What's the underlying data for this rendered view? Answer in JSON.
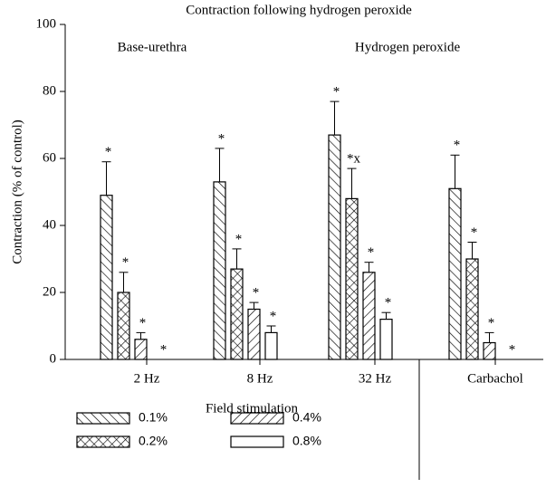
{
  "chart_data": {
    "type": "bar",
    "title": "Contraction following hydrogen peroxide",
    "y_label": "Contraction (% of control)",
    "x_label": "Field stimulation",
    "annotations": [
      "Base-urethra",
      "Hydrogen peroxide"
    ],
    "categories": [
      "2 Hz",
      "8 Hz",
      "32 Hz",
      "Carbachol"
    ],
    "series": [
      {
        "name": "0.1%",
        "color": "#000000",
        "pattern": "back-diagonal",
        "values": [
          49,
          53,
          67,
          51
        ],
        "errors": [
          10,
          10,
          10,
          10
        ],
        "markers": [
          "*",
          "*",
          "*",
          "*"
        ]
      },
      {
        "name": "0.2%",
        "color": "#000000",
        "pattern": "cross",
        "values": [
          20,
          27,
          48,
          30
        ],
        "errors": [
          6,
          6,
          9,
          5
        ],
        "markers": [
          "*",
          "*",
          "*x",
          "*"
        ]
      },
      {
        "name": "0.4%",
        "color": "#000000",
        "pattern": "diagonal",
        "values": [
          6,
          15,
          26,
          5
        ],
        "errors": [
          2,
          2,
          3,
          3
        ],
        "markers": [
          "*",
          "*",
          "*",
          "*"
        ]
      },
      {
        "name": "0.8%",
        "color": "#000000",
        "pattern": "none",
        "values": [
          0,
          8,
          12,
          0
        ],
        "errors": [
          0,
          2,
          2,
          0
        ],
        "markers": [
          "*",
          "*",
          "*",
          "*"
        ]
      }
    ],
    "ylim": [
      0,
      100
    ],
    "yticks": [
      0,
      20,
      40,
      60,
      80,
      100
    ],
    "legend": "bottom"
  }
}
